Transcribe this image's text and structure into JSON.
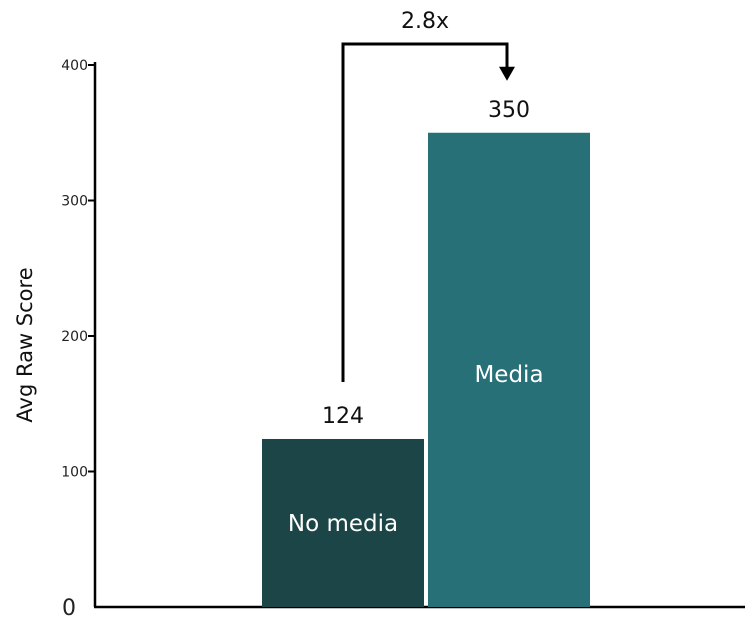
{
  "chart_data": {
    "type": "bar",
    "title": "",
    "xlabel": "",
    "ylabel": "Avg Raw Score",
    "ylim": [
      0,
      400
    ],
    "yticks": [
      {
        "value": 0,
        "label": "0"
      },
      {
        "value": 100,
        "label": "100"
      },
      {
        "value": 200,
        "label": "200"
      },
      {
        "value": 300,
        "label": "300"
      },
      {
        "value": 400,
        "label": "400"
      }
    ],
    "grid": false,
    "legend": "none",
    "bars": [
      {
        "category": "No media",
        "value": 124,
        "value_label": "124",
        "color": "#1b4547"
      },
      {
        "category": "Media",
        "value": 350,
        "value_label": "350",
        "color": "#287078"
      }
    ],
    "annotation": {
      "label": "2.8x",
      "from": "No media",
      "to": "Media"
    }
  }
}
